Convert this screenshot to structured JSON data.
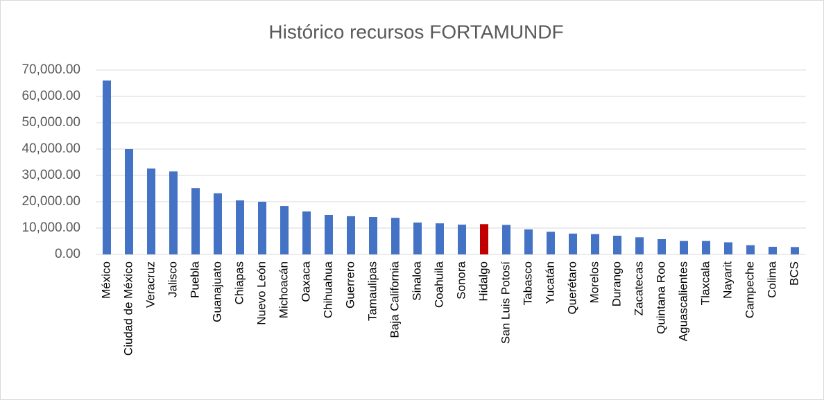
{
  "chart_data": {
    "type": "bar",
    "title": "Histórico recursos FORTAMUNDF",
    "categories": [
      "México",
      "Ciudad de México",
      "Veracruz",
      "Jalisco",
      "Puebla",
      "Guanajuato",
      "Chiapas",
      "Nuevo León",
      "Michoacán",
      "Oaxaca",
      "Chihuahua",
      "Guerrero",
      "Tamaulipas",
      "Baja California",
      "Sinaloa",
      "Coahuila",
      "Sonora",
      "Hidalgo",
      "San Luis Potosí",
      "Tabasco",
      "Yucatán",
      "Querétaro",
      "Morelos",
      "Durango",
      "Zacatecas",
      "Quintana Roo",
      "Aguascalientes",
      "Tlaxcala",
      "Nayarit",
      "Campeche",
      "Colima",
      "BCS"
    ],
    "values": [
      66000,
      40000,
      32600,
      31500,
      25200,
      23200,
      20500,
      20000,
      18400,
      16300,
      15000,
      14500,
      14200,
      13900,
      12100,
      11800,
      11300,
      11500,
      11200,
      9500,
      8600,
      7900,
      7700,
      7100,
      6500,
      5800,
      5100,
      5100,
      4600,
      3500,
      2900,
      2800
    ],
    "colors": [
      "#4472c4",
      "#4472c4",
      "#4472c4",
      "#4472c4",
      "#4472c4",
      "#4472c4",
      "#4472c4",
      "#4472c4",
      "#4472c4",
      "#4472c4",
      "#4472c4",
      "#4472c4",
      "#4472c4",
      "#4472c4",
      "#4472c4",
      "#4472c4",
      "#4472c4",
      "#c00000",
      "#4472c4",
      "#4472c4",
      "#4472c4",
      "#4472c4",
      "#4472c4",
      "#4472c4",
      "#4472c4",
      "#4472c4",
      "#4472c4",
      "#4472c4",
      "#4472c4",
      "#4472c4",
      "#4472c4",
      "#4472c4"
    ],
    "ylim": [
      0,
      70000
    ],
    "yticks": [
      {
        "value": 0,
        "label": "0.00"
      },
      {
        "value": 10000,
        "label": "10,000.00"
      },
      {
        "value": 20000,
        "label": "20,000.00"
      },
      {
        "value": 30000,
        "label": "30,000.00"
      },
      {
        "value": 40000,
        "label": "40,000.00"
      },
      {
        "value": 50000,
        "label": "50,000.00"
      },
      {
        "value": 60000,
        "label": "60,000.00"
      },
      {
        "value": 70000,
        "label": "70,000.00"
      }
    ],
    "grid": true
  }
}
